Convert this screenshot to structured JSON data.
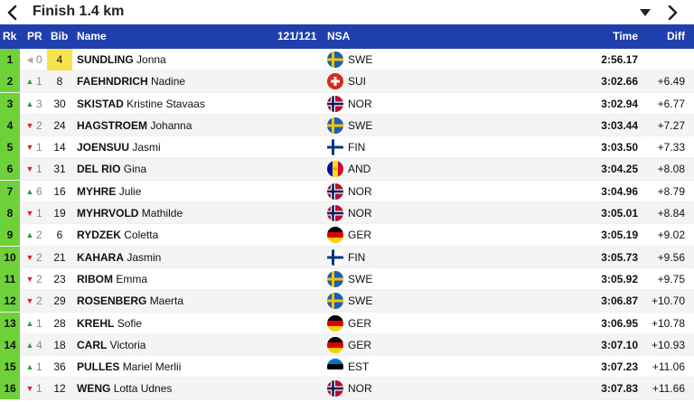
{
  "nav": {
    "title": "Finish 1.4 km"
  },
  "header": {
    "rk": "Rk",
    "pr": "PR",
    "bib": "Bib",
    "name": "Name",
    "count": "121/121",
    "nsa": "NSA",
    "time": "Time",
    "diff": "Diff"
  },
  "colors": {
    "header_bg": "#1f3fae",
    "rank_bg": "#6fd13a",
    "bib_highlight": "#f7e34a",
    "up": "#2a9d3a",
    "down": "#e02020"
  },
  "rows": [
    {
      "rk": "1",
      "pr_dir": "same",
      "pr": "0",
      "bib": "4",
      "bib_highlight": true,
      "last": "SUNDLING",
      "first": "Jonna",
      "nsa": "SWE",
      "time": "2:56.17",
      "diff": ""
    },
    {
      "rk": "2",
      "pr_dir": "up",
      "pr": "1",
      "bib": "8",
      "last": "FAEHNDRICH",
      "first": "Nadine",
      "nsa": "SUI",
      "time": "3:02.66",
      "diff": "+6.49"
    },
    {
      "rk": "3",
      "pr_dir": "up",
      "pr": "3",
      "bib": "30",
      "last": "SKISTAD",
      "first": "Kristine Stavaas",
      "nsa": "NOR",
      "time": "3:02.94",
      "diff": "+6.77"
    },
    {
      "rk": "4",
      "pr_dir": "down",
      "pr": "2",
      "bib": "24",
      "last": "HAGSTROEM",
      "first": "Johanna",
      "nsa": "SWE",
      "time": "3:03.44",
      "diff": "+7.27"
    },
    {
      "rk": "5",
      "pr_dir": "down",
      "pr": "1",
      "bib": "14",
      "last": "JOENSUU",
      "first": "Jasmi",
      "nsa": "FIN",
      "time": "3:03.50",
      "diff": "+7.33"
    },
    {
      "rk": "6",
      "pr_dir": "down",
      "pr": "1",
      "bib": "31",
      "last": "DEL RIO",
      "first": "Gina",
      "nsa": "AND",
      "time": "3:04.25",
      "diff": "+8.08"
    },
    {
      "rk": "7",
      "pr_dir": "up",
      "pr": "6",
      "bib": "16",
      "last": "MYHRE",
      "first": "Julie",
      "nsa": "NOR",
      "time": "3:04.96",
      "diff": "+8.79"
    },
    {
      "rk": "8",
      "pr_dir": "down",
      "pr": "1",
      "bib": "19",
      "last": "MYHRVOLD",
      "first": "Mathilde",
      "nsa": "NOR",
      "time": "3:05.01",
      "diff": "+8.84"
    },
    {
      "rk": "9",
      "pr_dir": "up",
      "pr": "2",
      "bib": "6",
      "last": "RYDZEK",
      "first": "Coletta",
      "nsa": "GER",
      "time": "3:05.19",
      "diff": "+9.02"
    },
    {
      "rk": "10",
      "pr_dir": "down",
      "pr": "2",
      "bib": "21",
      "last": "KAHARA",
      "first": "Jasmin",
      "nsa": "FIN",
      "time": "3:05.73",
      "diff": "+9.56"
    },
    {
      "rk": "11",
      "pr_dir": "down",
      "pr": "2",
      "bib": "23",
      "last": "RIBOM",
      "first": "Emma",
      "nsa": "SWE",
      "time": "3:05.92",
      "diff": "+9.75"
    },
    {
      "rk": "12",
      "pr_dir": "down",
      "pr": "2",
      "bib": "29",
      "last": "ROSENBERG",
      "first": "Maerta",
      "nsa": "SWE",
      "time": "3:06.87",
      "diff": "+10.70"
    },
    {
      "rk": "13",
      "pr_dir": "up",
      "pr": "1",
      "bib": "28",
      "last": "KREHL",
      "first": "Sofie",
      "nsa": "GER",
      "time": "3:06.95",
      "diff": "+10.78"
    },
    {
      "rk": "14",
      "pr_dir": "up",
      "pr": "4",
      "bib": "18",
      "last": "CARL",
      "first": "Victoria",
      "nsa": "GER",
      "time": "3:07.10",
      "diff": "+10.93"
    },
    {
      "rk": "15",
      "pr_dir": "up",
      "pr": "1",
      "bib": "36",
      "last": "PULLES",
      "first": "Mariel Merlii",
      "nsa": "EST",
      "time": "3:07.23",
      "diff": "+11.06"
    },
    {
      "rk": "16",
      "pr_dir": "down",
      "pr": "1",
      "bib": "12",
      "last": "WENG",
      "first": "Lotta Udnes",
      "nsa": "NOR",
      "time": "3:07.83",
      "diff": "+11.66"
    }
  ]
}
